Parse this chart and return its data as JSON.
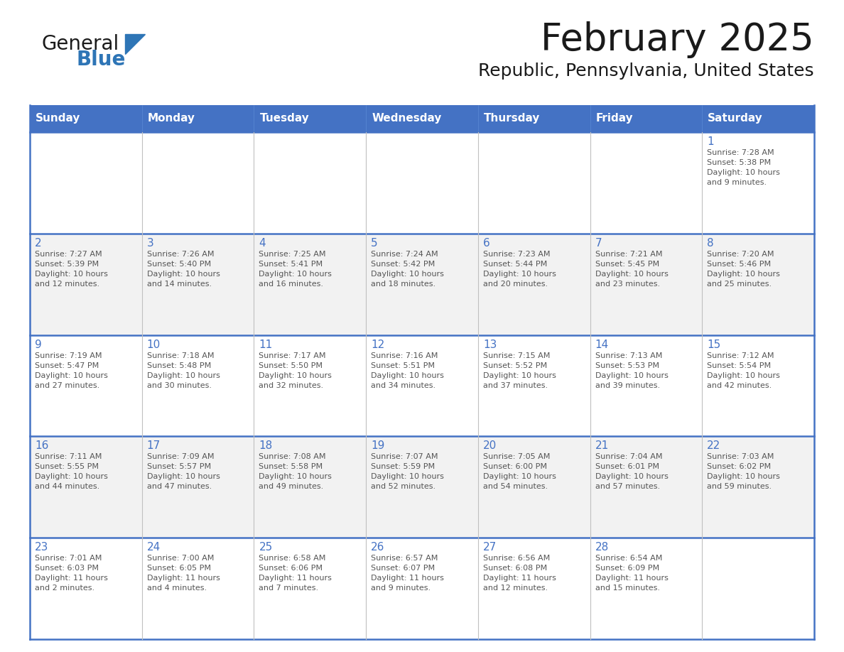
{
  "title": "February 2025",
  "subtitle": "Republic, Pennsylvania, United States",
  "header_bg": "#4472C4",
  "header_text_color": "#FFFFFF",
  "row_bg": [
    "#FFFFFF",
    "#F2F2F2",
    "#FFFFFF",
    "#F2F2F2",
    "#FFFFFF"
  ],
  "day_number_color": "#4472C4",
  "info_text_color": "#555555",
  "border_color": "#4472C4",
  "inner_border_color": "#C0C0C0",
  "days_of_week": [
    "Sunday",
    "Monday",
    "Tuesday",
    "Wednesday",
    "Thursday",
    "Friday",
    "Saturday"
  ],
  "weeks": [
    [
      {
        "day": null,
        "info": null
      },
      {
        "day": null,
        "info": null
      },
      {
        "day": null,
        "info": null
      },
      {
        "day": null,
        "info": null
      },
      {
        "day": null,
        "info": null
      },
      {
        "day": null,
        "info": null
      },
      {
        "day": 1,
        "info": "Sunrise: 7:28 AM\nSunset: 5:38 PM\nDaylight: 10 hours\nand 9 minutes."
      }
    ],
    [
      {
        "day": 2,
        "info": "Sunrise: 7:27 AM\nSunset: 5:39 PM\nDaylight: 10 hours\nand 12 minutes."
      },
      {
        "day": 3,
        "info": "Sunrise: 7:26 AM\nSunset: 5:40 PM\nDaylight: 10 hours\nand 14 minutes."
      },
      {
        "day": 4,
        "info": "Sunrise: 7:25 AM\nSunset: 5:41 PM\nDaylight: 10 hours\nand 16 minutes."
      },
      {
        "day": 5,
        "info": "Sunrise: 7:24 AM\nSunset: 5:42 PM\nDaylight: 10 hours\nand 18 minutes."
      },
      {
        "day": 6,
        "info": "Sunrise: 7:23 AM\nSunset: 5:44 PM\nDaylight: 10 hours\nand 20 minutes."
      },
      {
        "day": 7,
        "info": "Sunrise: 7:21 AM\nSunset: 5:45 PM\nDaylight: 10 hours\nand 23 minutes."
      },
      {
        "day": 8,
        "info": "Sunrise: 7:20 AM\nSunset: 5:46 PM\nDaylight: 10 hours\nand 25 minutes."
      }
    ],
    [
      {
        "day": 9,
        "info": "Sunrise: 7:19 AM\nSunset: 5:47 PM\nDaylight: 10 hours\nand 27 minutes."
      },
      {
        "day": 10,
        "info": "Sunrise: 7:18 AM\nSunset: 5:48 PM\nDaylight: 10 hours\nand 30 minutes."
      },
      {
        "day": 11,
        "info": "Sunrise: 7:17 AM\nSunset: 5:50 PM\nDaylight: 10 hours\nand 32 minutes."
      },
      {
        "day": 12,
        "info": "Sunrise: 7:16 AM\nSunset: 5:51 PM\nDaylight: 10 hours\nand 34 minutes."
      },
      {
        "day": 13,
        "info": "Sunrise: 7:15 AM\nSunset: 5:52 PM\nDaylight: 10 hours\nand 37 minutes."
      },
      {
        "day": 14,
        "info": "Sunrise: 7:13 AM\nSunset: 5:53 PM\nDaylight: 10 hours\nand 39 minutes."
      },
      {
        "day": 15,
        "info": "Sunrise: 7:12 AM\nSunset: 5:54 PM\nDaylight: 10 hours\nand 42 minutes."
      }
    ],
    [
      {
        "day": 16,
        "info": "Sunrise: 7:11 AM\nSunset: 5:55 PM\nDaylight: 10 hours\nand 44 minutes."
      },
      {
        "day": 17,
        "info": "Sunrise: 7:09 AM\nSunset: 5:57 PM\nDaylight: 10 hours\nand 47 minutes."
      },
      {
        "day": 18,
        "info": "Sunrise: 7:08 AM\nSunset: 5:58 PM\nDaylight: 10 hours\nand 49 minutes."
      },
      {
        "day": 19,
        "info": "Sunrise: 7:07 AM\nSunset: 5:59 PM\nDaylight: 10 hours\nand 52 minutes."
      },
      {
        "day": 20,
        "info": "Sunrise: 7:05 AM\nSunset: 6:00 PM\nDaylight: 10 hours\nand 54 minutes."
      },
      {
        "day": 21,
        "info": "Sunrise: 7:04 AM\nSunset: 6:01 PM\nDaylight: 10 hours\nand 57 minutes."
      },
      {
        "day": 22,
        "info": "Sunrise: 7:03 AM\nSunset: 6:02 PM\nDaylight: 10 hours\nand 59 minutes."
      }
    ],
    [
      {
        "day": 23,
        "info": "Sunrise: 7:01 AM\nSunset: 6:03 PM\nDaylight: 11 hours\nand 2 minutes."
      },
      {
        "day": 24,
        "info": "Sunrise: 7:00 AM\nSunset: 6:05 PM\nDaylight: 11 hours\nand 4 minutes."
      },
      {
        "day": 25,
        "info": "Sunrise: 6:58 AM\nSunset: 6:06 PM\nDaylight: 11 hours\nand 7 minutes."
      },
      {
        "day": 26,
        "info": "Sunrise: 6:57 AM\nSunset: 6:07 PM\nDaylight: 11 hours\nand 9 minutes."
      },
      {
        "day": 27,
        "info": "Sunrise: 6:56 AM\nSunset: 6:08 PM\nDaylight: 11 hours\nand 12 minutes."
      },
      {
        "day": 28,
        "info": "Sunrise: 6:54 AM\nSunset: 6:09 PM\nDaylight: 11 hours\nand 15 minutes."
      },
      {
        "day": null,
        "info": null
      }
    ]
  ],
  "logo_text1": "General",
  "logo_text2": "Blue",
  "logo_color1": "#1a1a1a",
  "logo_color2": "#2E75B6",
  "logo_triangle_color": "#2E75B6",
  "title_color": "#1a1a1a",
  "subtitle_color": "#1a1a1a"
}
